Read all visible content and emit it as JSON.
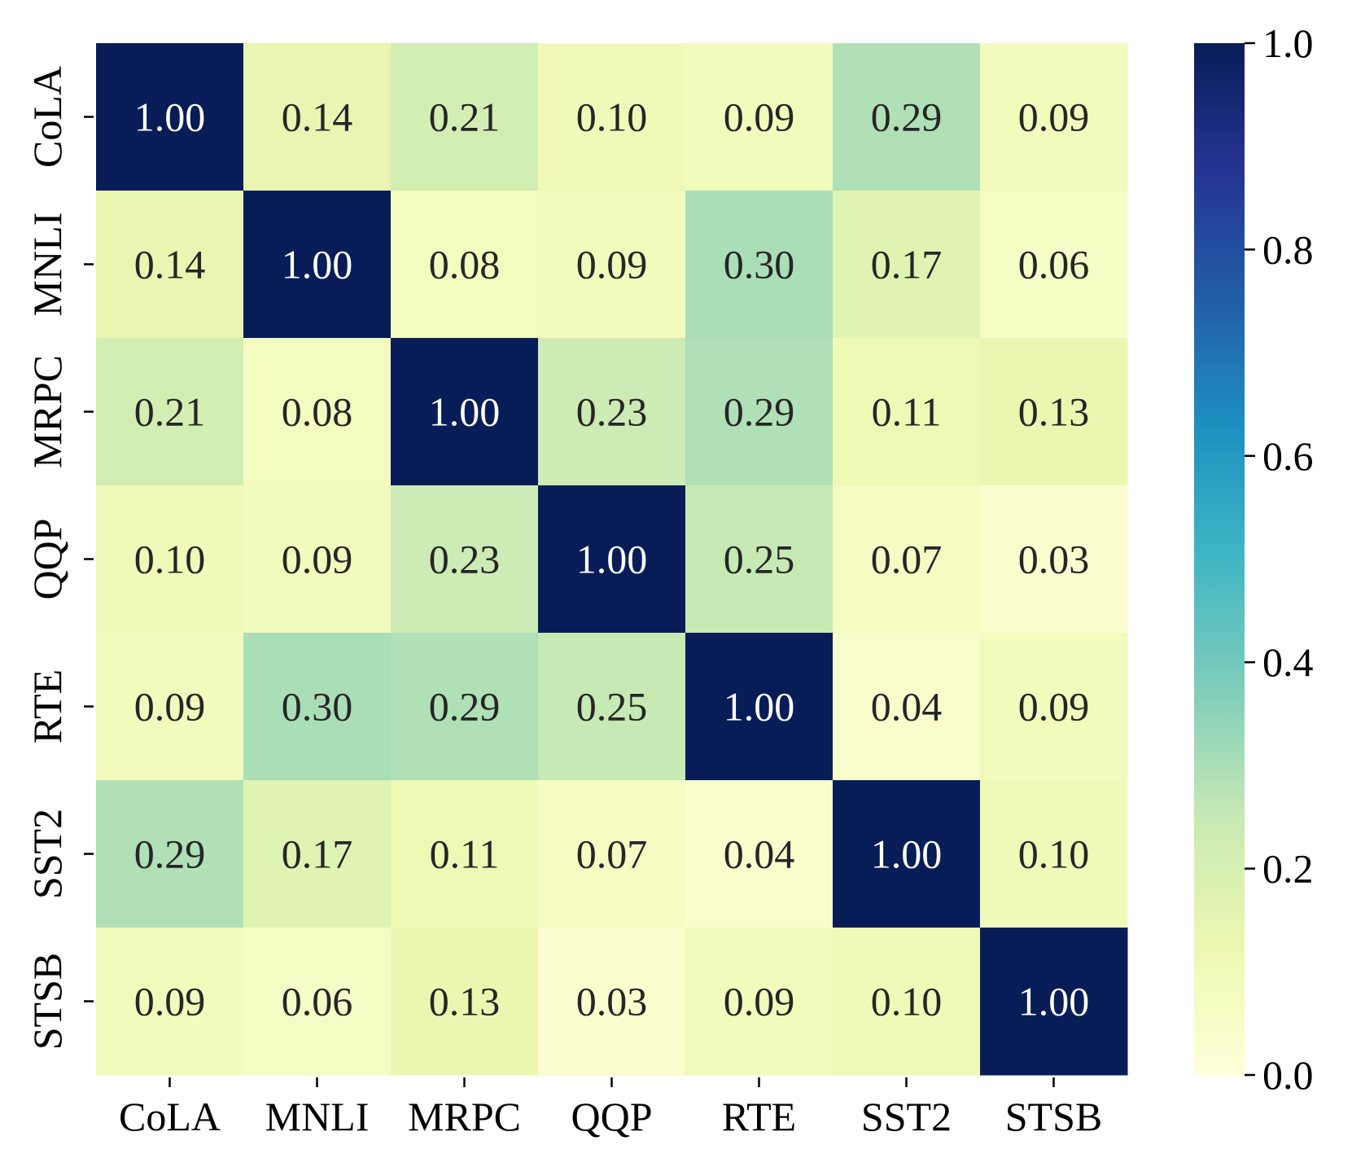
{
  "chart_data": {
    "type": "heatmap",
    "title": "",
    "xlabel": "",
    "ylabel": "",
    "x_categories": [
      "CoLA",
      "MNLI",
      "MRPC",
      "QQP",
      "RTE",
      "SST2",
      "STSB"
    ],
    "y_categories": [
      "CoLA",
      "MNLI",
      "MRPC",
      "QQP",
      "RTE",
      "SST2",
      "STSB"
    ],
    "values": [
      [
        1.0,
        0.14,
        0.21,
        0.1,
        0.09,
        0.29,
        0.09
      ],
      [
        0.14,
        1.0,
        0.08,
        0.09,
        0.3,
        0.17,
        0.06
      ],
      [
        0.21,
        0.08,
        1.0,
        0.23,
        0.29,
        0.11,
        0.13
      ],
      [
        0.1,
        0.09,
        0.23,
        1.0,
        0.25,
        0.07,
        0.03
      ],
      [
        0.09,
        0.3,
        0.29,
        0.25,
        1.0,
        0.04,
        0.09
      ],
      [
        0.29,
        0.17,
        0.11,
        0.07,
        0.04,
        1.0,
        0.1
      ],
      [
        0.09,
        0.06,
        0.13,
        0.03,
        0.09,
        0.1,
        1.0
      ]
    ],
    "value_labels": [
      [
        "1.00",
        "0.14",
        "0.21",
        "0.10",
        "0.09",
        "0.29",
        "0.09"
      ],
      [
        "0.14",
        "1.00",
        "0.08",
        "0.09",
        "0.30",
        "0.17",
        "0.06"
      ],
      [
        "0.21",
        "0.08",
        "1.00",
        "0.23",
        "0.29",
        "0.11",
        "0.13"
      ],
      [
        "0.10",
        "0.09",
        "0.23",
        "1.00",
        "0.25",
        "0.07",
        "0.03"
      ],
      [
        "0.09",
        "0.30",
        "0.29",
        "0.25",
        "1.00",
        "0.04",
        "0.09"
      ],
      [
        "0.29",
        "0.17",
        "0.11",
        "0.07",
        "0.04",
        "1.00",
        "0.10"
      ],
      [
        "0.09",
        "0.06",
        "0.13",
        "0.03",
        "0.09",
        "0.10",
        "1.00"
      ]
    ],
    "colormap": "YlGnBu",
    "vmin": 0.0,
    "vmax": 1.0,
    "colorbar": {
      "ticks": [
        0.0,
        0.2,
        0.4,
        0.6,
        0.8,
        1.0
      ],
      "tick_labels": [
        "0.0",
        "0.2",
        "0.4",
        "0.6",
        "0.8",
        "1.0"
      ]
    },
    "colormap_stops": [
      "#ffffd9",
      "#edf8b1",
      "#c7e9b4",
      "#7fcdbb",
      "#41b6c4",
      "#1d91c0",
      "#225ea8",
      "#253494",
      "#081d58"
    ],
    "annotation_colors": {
      "dark": "#262626",
      "light": "#ffffff"
    }
  }
}
